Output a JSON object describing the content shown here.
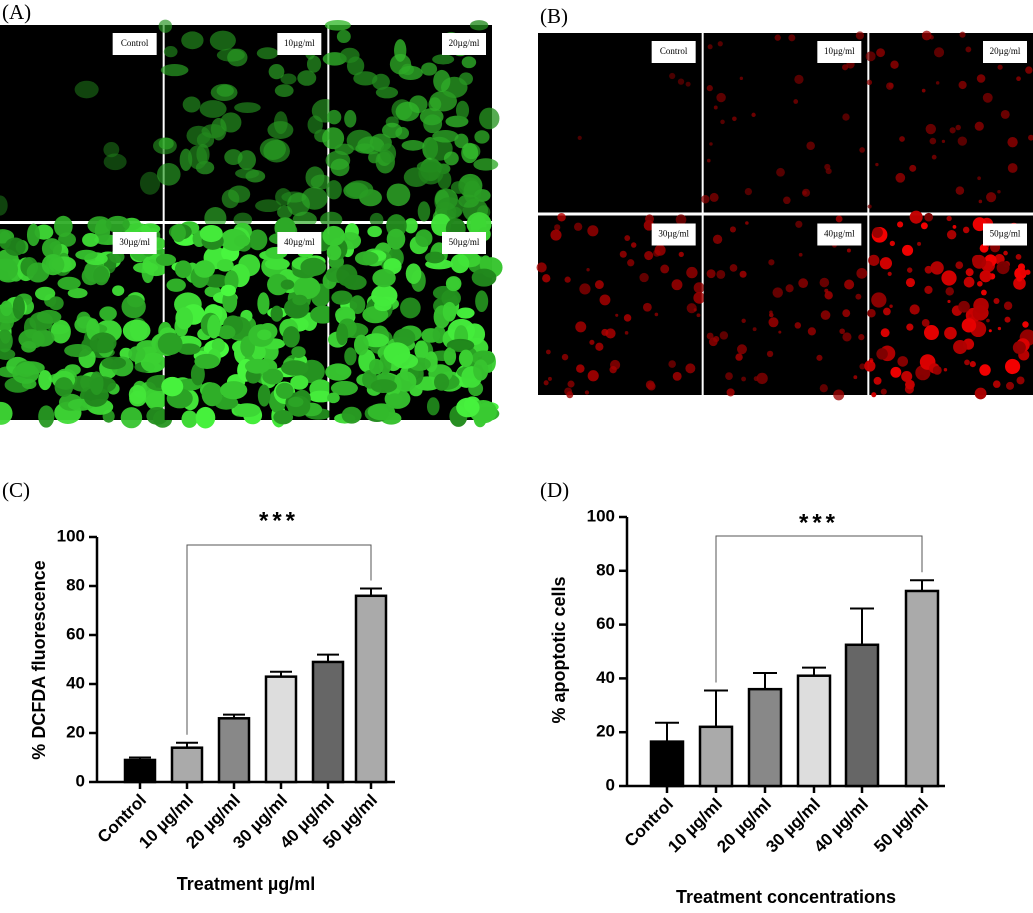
{
  "image_panels": [
    {
      "label": "(A)",
      "images": [
        "Control",
        "10µg/ml",
        "20µg/ml",
        "30µg/ml",
        "40µg/ml",
        "50µg/ml"
      ]
    },
    {
      "label": "(B)",
      "images": [
        "Control",
        "10µg/ml",
        "20µg/ml",
        "30µg/ml",
        "40µg/ml",
        "50µg/ml"
      ]
    }
  ],
  "chart_data": [
    {
      "type": "bar",
      "label": "(C)",
      "annotation": "***",
      "categories": [
        "Control",
        "10 µg/ml",
        "20 µg/ml",
        "30 µg/ml",
        "40 µg/ml",
        "50  µg/ml"
      ],
      "values": [
        9,
        14,
        26,
        43,
        49,
        76
      ],
      "errors": [
        1,
        2,
        1.5,
        2,
        3,
        3
      ],
      "colors": [
        "#000000",
        "#aaaaaa",
        "#888888",
        "#dddddd",
        "#666666",
        "#aaaaaa"
      ],
      "ylabel": "% DCFDA fluorescence",
      "xlabel": "Treatment µg/ml",
      "ylim": [
        0,
        100
      ],
      "yticks": [
        0,
        20,
        40,
        60,
        80,
        100
      ]
    },
    {
      "type": "bar",
      "label": "(D)",
      "annotation": "***",
      "categories": [
        "Control",
        "10 µg/ml",
        "20 µg/ml",
        "30 µg/ml",
        "40 µg/ml",
        "50 µg/ml"
      ],
      "values": [
        16.5,
        22,
        36,
        41,
        52.5,
        72.5
      ],
      "errors": [
        7,
        13.5,
        6,
        3,
        13.5,
        4
      ],
      "colors": [
        "#000000",
        "#aaaaaa",
        "#888888",
        "#dddddd",
        "#666666",
        "#aaaaaa"
      ],
      "ylabel": "% apoptotic cells",
      "xlabel": "Treatment concentrations",
      "ylim": [
        0,
        100
      ],
      "yticks": [
        0,
        20,
        40,
        60,
        80,
        100
      ]
    }
  ]
}
